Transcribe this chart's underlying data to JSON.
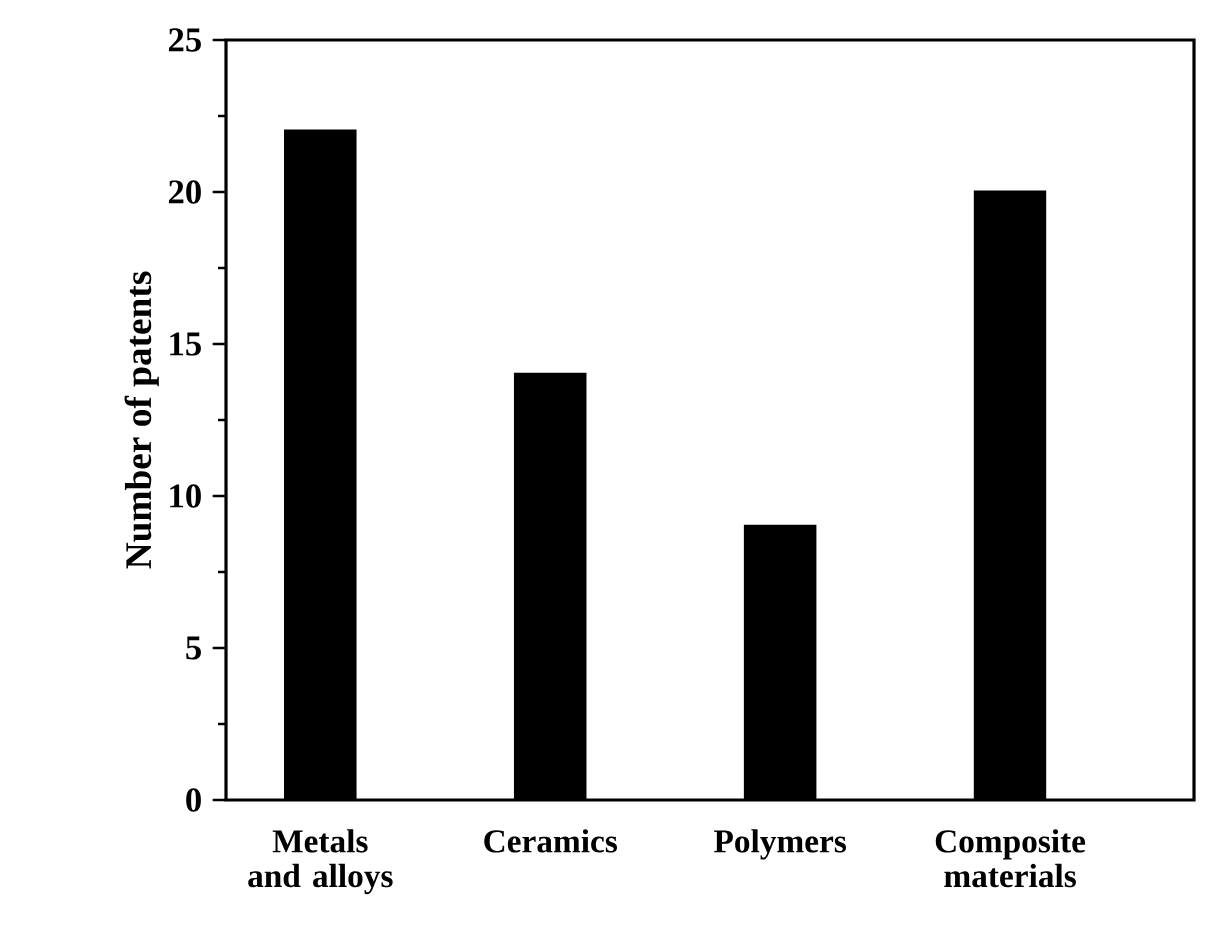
{
  "chart_data": {
    "type": "bar",
    "ylabel": "Number of patents",
    "categories": [
      "Metals and alloys",
      "Ceramics",
      "Polymers",
      "Composite materials"
    ],
    "values": [
      22,
      14,
      9,
      20
    ],
    "color": "#000000",
    "ylim": [
      0,
      25
    ],
    "yticks": [
      0,
      5,
      10,
      15,
      20,
      25
    ]
  }
}
